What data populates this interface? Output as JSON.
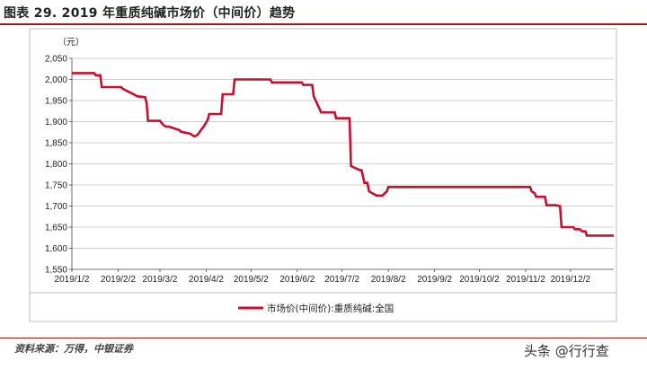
{
  "title": "图表 29. 2019 年重质纯碱市场价（中间价）趋势",
  "source": "资料来源：万得，中银证券",
  "watermark": "头条 @行行查",
  "colors": {
    "line": "#c8102e",
    "accent": "#9e1b1b",
    "grid": "#bfbfbf"
  },
  "chart_data": {
    "type": "line",
    "title": "",
    "ylabel": "（元）",
    "xlabel": "",
    "ylim": [
      1550,
      2050
    ],
    "yticks": [
      1550,
      1600,
      1650,
      1700,
      1750,
      1800,
      1850,
      1900,
      1950,
      2000,
      2050
    ],
    "ytick_labels": [
      "1,550",
      "1,600",
      "1,650",
      "1,700",
      "1,750",
      "1,800",
      "1,850",
      "1,900",
      "1,950",
      "2,000",
      "2,050"
    ],
    "xlim": [
      "2019-01-02",
      "2019-12-31"
    ],
    "xticks": [
      "2019-01-02",
      "2019-02-02",
      "2019-03-02",
      "2019-04-02",
      "2019-05-02",
      "2019-06-02",
      "2019-07-02",
      "2019-08-02",
      "2019-09-02",
      "2019-10-02",
      "2019-11-02",
      "2019-12-02"
    ],
    "xtick_labels": [
      "2019/1/2",
      "2019/2/2",
      "2019/3/2",
      "2019/4/2",
      "2019/5/2",
      "2019/6/2",
      "2019/7/2",
      "2019/8/2",
      "2019/9/2",
      "2019/10/2",
      "2019/11/2",
      "2019/12/2"
    ],
    "grid": true,
    "legend": "bottom",
    "series": [
      {
        "name": "市场价(中间价):重质纯碱:全国",
        "x": [
          "2019-01-02",
          "2019-01-17",
          "2019-01-18",
          "2019-01-21",
          "2019-01-22",
          "2019-02-04",
          "2019-02-05",
          "2019-02-15",
          "2019-02-20",
          "2019-02-21",
          "2019-02-22",
          "2019-03-02",
          "2019-03-04",
          "2019-03-06",
          "2019-03-08",
          "2019-03-15",
          "2019-03-16",
          "2019-03-22",
          "2019-03-25",
          "2019-03-27",
          "2019-04-01",
          "2019-04-03",
          "2019-04-04",
          "2019-04-12",
          "2019-04-13",
          "2019-04-20",
          "2019-04-21",
          "2019-05-15",
          "2019-05-16",
          "2019-06-05",
          "2019-06-06",
          "2019-06-12",
          "2019-06-13",
          "2019-06-15",
          "2019-06-18",
          "2019-06-19",
          "2019-06-27",
          "2019-06-28",
          "2019-07-07",
          "2019-07-08",
          "2019-07-14",
          "2019-07-15",
          "2019-07-17",
          "2019-07-19",
          "2019-07-20",
          "2019-07-25",
          "2019-07-29",
          "2019-08-01",
          "2019-08-02",
          "2019-11-05",
          "2019-11-06",
          "2019-11-08",
          "2019-11-09",
          "2019-11-15",
          "2019-11-16",
          "2019-11-22",
          "2019-11-25",
          "2019-11-26",
          "2019-12-04",
          "2019-12-05",
          "2019-12-08",
          "2019-12-10",
          "2019-12-12",
          "2019-12-13",
          "2019-12-31"
        ],
        "values": [
          2015,
          2015,
          2010,
          2010,
          1982,
          1982,
          1978,
          1960,
          1958,
          1945,
          1902,
          1902,
          1893,
          1888,
          1888,
          1880,
          1876,
          1872,
          1865,
          1868,
          1892,
          1905,
          1918,
          1918,
          1965,
          1965,
          2000,
          2000,
          1993,
          1993,
          1987,
          1987,
          1960,
          1945,
          1922,
          1922,
          1922,
          1908,
          1908,
          1795,
          1785,
          1785,
          1755,
          1755,
          1735,
          1725,
          1725,
          1735,
          1745,
          1745,
          1735,
          1730,
          1722,
          1722,
          1702,
          1702,
          1700,
          1650,
          1650,
          1645,
          1645,
          1640,
          1640,
          1630,
          1630
        ]
      }
    ]
  }
}
